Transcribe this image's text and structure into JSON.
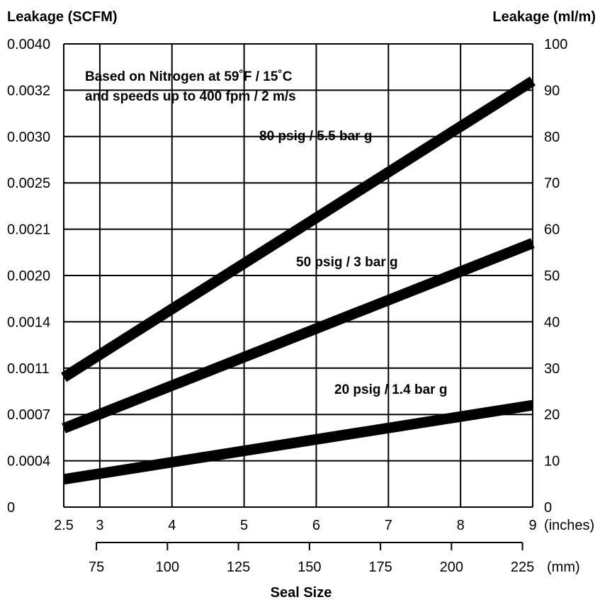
{
  "chart_data": {
    "type": "line",
    "title": "",
    "note_lines": [
      "Based on Nitrogen at 59˚F / 15˚C",
      "and speeds up to 400 fpm / 2 m/s"
    ],
    "y_left": {
      "label": "Leakage (SCFM)",
      "tick_labels": [
        "0",
        "0.0004",
        "0.0007",
        "0.0011",
        "0.0014",
        "0.0020",
        "0.0021",
        "0.0025",
        "0.0030",
        "0.0032",
        "0.0040"
      ]
    },
    "y_right": {
      "label": "Leakage (ml/m)",
      "range": [
        0,
        100
      ],
      "tick_labels": [
        "0",
        "10",
        "20",
        "30",
        "40",
        "50",
        "60",
        "70",
        "80",
        "90",
        "100"
      ]
    },
    "x_inches": {
      "unit_label": "(inches)",
      "range": [
        2.5,
        9
      ],
      "ticks": [
        2.5,
        3,
        4,
        5,
        6,
        7,
        8,
        9
      ],
      "tick_labels": [
        "2.5",
        "3",
        "4",
        "5",
        "6",
        "7",
        "8",
        "9"
      ]
    },
    "x_mm": {
      "unit_label": "(mm)",
      "ticks": [
        75,
        100,
        125,
        150,
        175,
        200,
        225
      ],
      "tick_labels": [
        "75",
        "100",
        "125",
        "150",
        "175",
        "200",
        "225"
      ]
    },
    "xlabel": "Seal Size",
    "grid": true,
    "series": [
      {
        "name": "80 psig / 5.5 bar g",
        "x": [
          2.5,
          9
        ],
        "y": [
          28,
          92
        ]
      },
      {
        "name": "50 psig / 3 bar g",
        "x": [
          2.5,
          9
        ],
        "y": [
          17,
          57
        ]
      },
      {
        "name": "20 psig / 1.4 bar g",
        "x": [
          2.5,
          9
        ],
        "y": [
          6,
          22
        ]
      }
    ]
  }
}
